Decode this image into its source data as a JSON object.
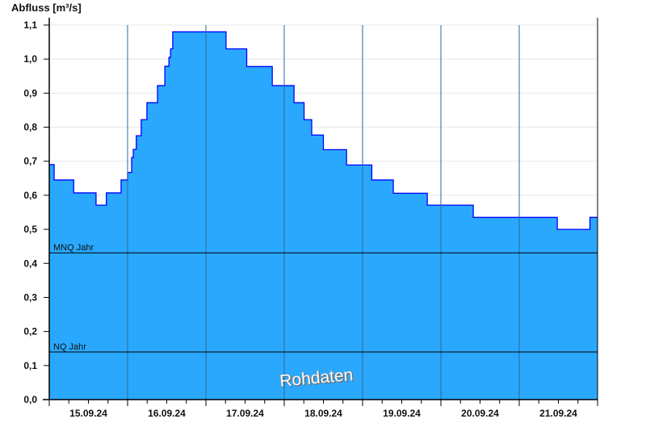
{
  "chart_data": {
    "type": "area",
    "step": true,
    "ylabel": "Abfluss [m³/s]",
    "xlabel": "",
    "ylim": [
      0,
      1.1
    ],
    "xlim": [
      "2024-09-15T00:00",
      "2024-09-22T00:00"
    ],
    "yticks": [
      "0,0",
      "0,1",
      "0,2",
      "0,3",
      "0,4",
      "0,5",
      "0,6",
      "0,7",
      "0,8",
      "0,9",
      "1,0",
      "1,1"
    ],
    "xticks": [
      {
        "date": "2024-09-15",
        "label": "15.09.24"
      },
      {
        "date": "2024-09-16",
        "label": "16.09.24"
      },
      {
        "date": "2024-09-17",
        "label": "17.09.24"
      },
      {
        "date": "2024-09-18",
        "label": "18.09.24"
      },
      {
        "date": "2024-09-19",
        "label": "19.09.24"
      },
      {
        "date": "2024-09-20",
        "label": "20.09.24"
      },
      {
        "date": "2024-09-21",
        "label": "21.09.24"
      }
    ],
    "grid": true,
    "series": [
      {
        "x": [
          "2024-09-15T00:00",
          "2024-09-15T01:30",
          "2024-09-15T07:30",
          "2024-09-15T14:20",
          "2024-09-15T17:30",
          "2024-09-15T22:00",
          "2024-09-16T00:00",
          "2024-09-16T01:15",
          "2024-09-16T01:45",
          "2024-09-16T02:40",
          "2024-09-16T04:10",
          "2024-09-16T05:55",
          "2024-09-16T09:10",
          "2024-09-16T11:25",
          "2024-09-16T12:40",
          "2024-09-16T13:10",
          "2024-09-16T13:50",
          "2024-09-17T06:10",
          "2024-09-17T12:30",
          "2024-09-17T20:20",
          "2024-09-18T03:00",
          "2024-09-18T06:05",
          "2024-09-18T08:25",
          "2024-09-18T12:00",
          "2024-09-18T19:05",
          "2024-09-19T02:50",
          "2024-09-19T09:25",
          "2024-09-19T19:50",
          "2024-09-20T09:55",
          "2024-09-21T11:40",
          "2024-09-21T21:40",
          "2024-09-22T00:00"
        ],
        "y": [
          0.69,
          0.645,
          0.607,
          0.571,
          0.607,
          0.645,
          0.667,
          0.711,
          0.735,
          0.775,
          0.822,
          0.872,
          0.922,
          0.979,
          1.005,
          1.03,
          1.08,
          1.03,
          0.978,
          0.922,
          0.872,
          0.822,
          0.777,
          0.734,
          0.689,
          0.645,
          0.606,
          0.571,
          0.535,
          0.5,
          0.535,
          0.535
        ]
      }
    ],
    "reference_lines": [
      {
        "label": "MNQ Jahr",
        "value": 0.431
      },
      {
        "label": "NQ Jahr",
        "value": 0.14
      }
    ],
    "watermark": "Rohdaten",
    "colors": {
      "fill": "#2aa8fe",
      "line": "#0000ff",
      "day_grid": "#2a6a96",
      "grid": "#e8e8e8"
    }
  }
}
